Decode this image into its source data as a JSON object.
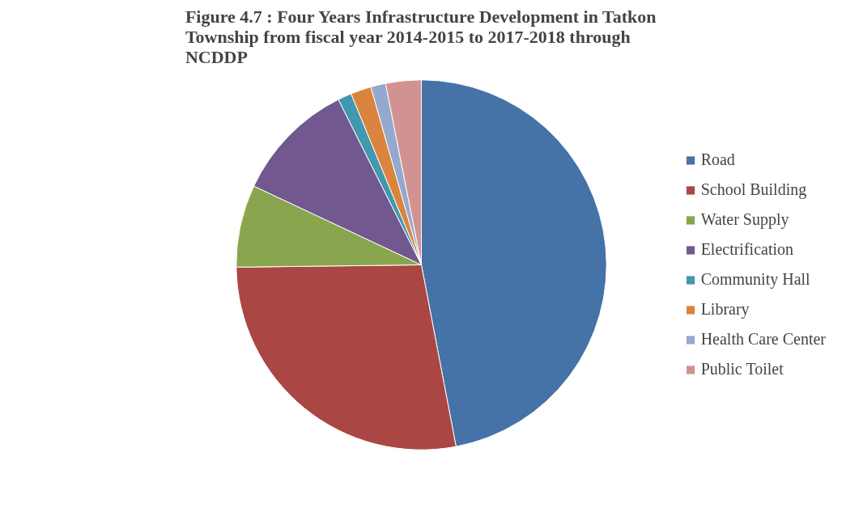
{
  "chart_data": {
    "type": "pie",
    "title": "Figure 4.7 : Four Years Infrastructure Development in Tatkon Township from fiscal year 2014-2015 to 2017-2018 through NCDDP",
    "categories": [
      "Road",
      "School Building",
      "Water Supply",
      "Electrification",
      "Community Hall",
      "Library",
      "Health Care Center",
      "Public Toilet"
    ],
    "values": [
      47,
      27.8,
      7.2,
      10.6,
      1.2,
      1.8,
      1.3,
      3.1
    ],
    "colors": [
      "#4572a7",
      "#aa4643",
      "#89a54e",
      "#71588f",
      "#4198af",
      "#db843d",
      "#93a9cf",
      "#d19392"
    ],
    "legend": "right"
  }
}
